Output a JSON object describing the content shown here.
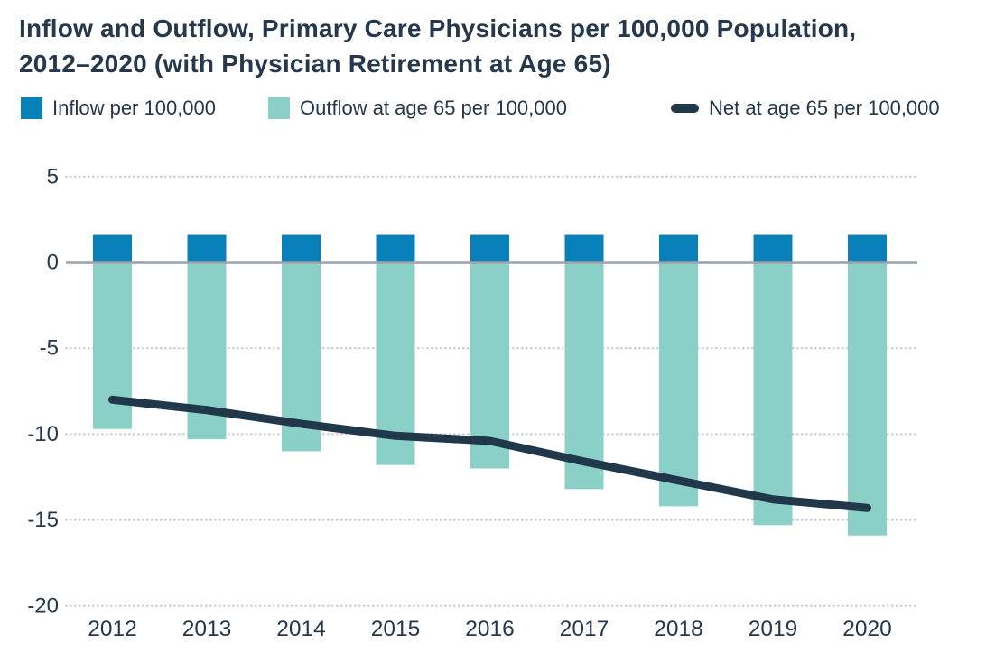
{
  "title": {
    "line1": "Inflow and Outflow, Primary Care Physicians per 100,000 Population,",
    "line2": "2012–2020 (with Physician Retirement at Age 65)"
  },
  "legend": {
    "inflow_label": "Inflow per 100,000",
    "outflow_label": "Outflow at age 65 per 100,000",
    "net_label": "Net at age 65 per 100,000"
  },
  "colors": {
    "inflow_blue": "#0880ba",
    "outflow_teal": "#8bd0c7",
    "net_navy": "#21374a",
    "text_navy": "#25384c",
    "zero_line_gray": "#9aa2ad",
    "gridline_gray": "#bfc5cc"
  },
  "chart_data": {
    "type": "bar+line",
    "title": "Inflow and Outflow, Primary Care Physicians per 100,000 Population, 2012–2020 (with Physician Retirement at Age 65)",
    "categories": [
      "2012",
      "2013",
      "2014",
      "2015",
      "2016",
      "2017",
      "2018",
      "2019",
      "2020"
    ],
    "series": [
      {
        "name": "Inflow per 100,000",
        "type": "bar",
        "values": [
          1.6,
          1.6,
          1.6,
          1.6,
          1.6,
          1.6,
          1.6,
          1.6,
          1.6
        ]
      },
      {
        "name": "Outflow at age 65 per 100,000",
        "type": "bar",
        "values": [
          -9.7,
          -10.3,
          -11.0,
          -11.8,
          -12.0,
          -13.2,
          -14.2,
          -15.3,
          -15.9
        ]
      },
      {
        "name": "Net at age 65 per 100,000",
        "type": "line",
        "values": [
          -8.0,
          -8.6,
          -9.4,
          -10.1,
          -10.4,
          -11.6,
          -12.7,
          -13.8,
          -14.3
        ]
      }
    ],
    "xlabel": "",
    "ylabel": "",
    "ylim": [
      -20,
      5
    ],
    "yticks": [
      5,
      0,
      -5,
      -10,
      -15,
      -20
    ],
    "grid": "horizontal-dotted",
    "zero_baseline": true,
    "legend_position": "top"
  }
}
